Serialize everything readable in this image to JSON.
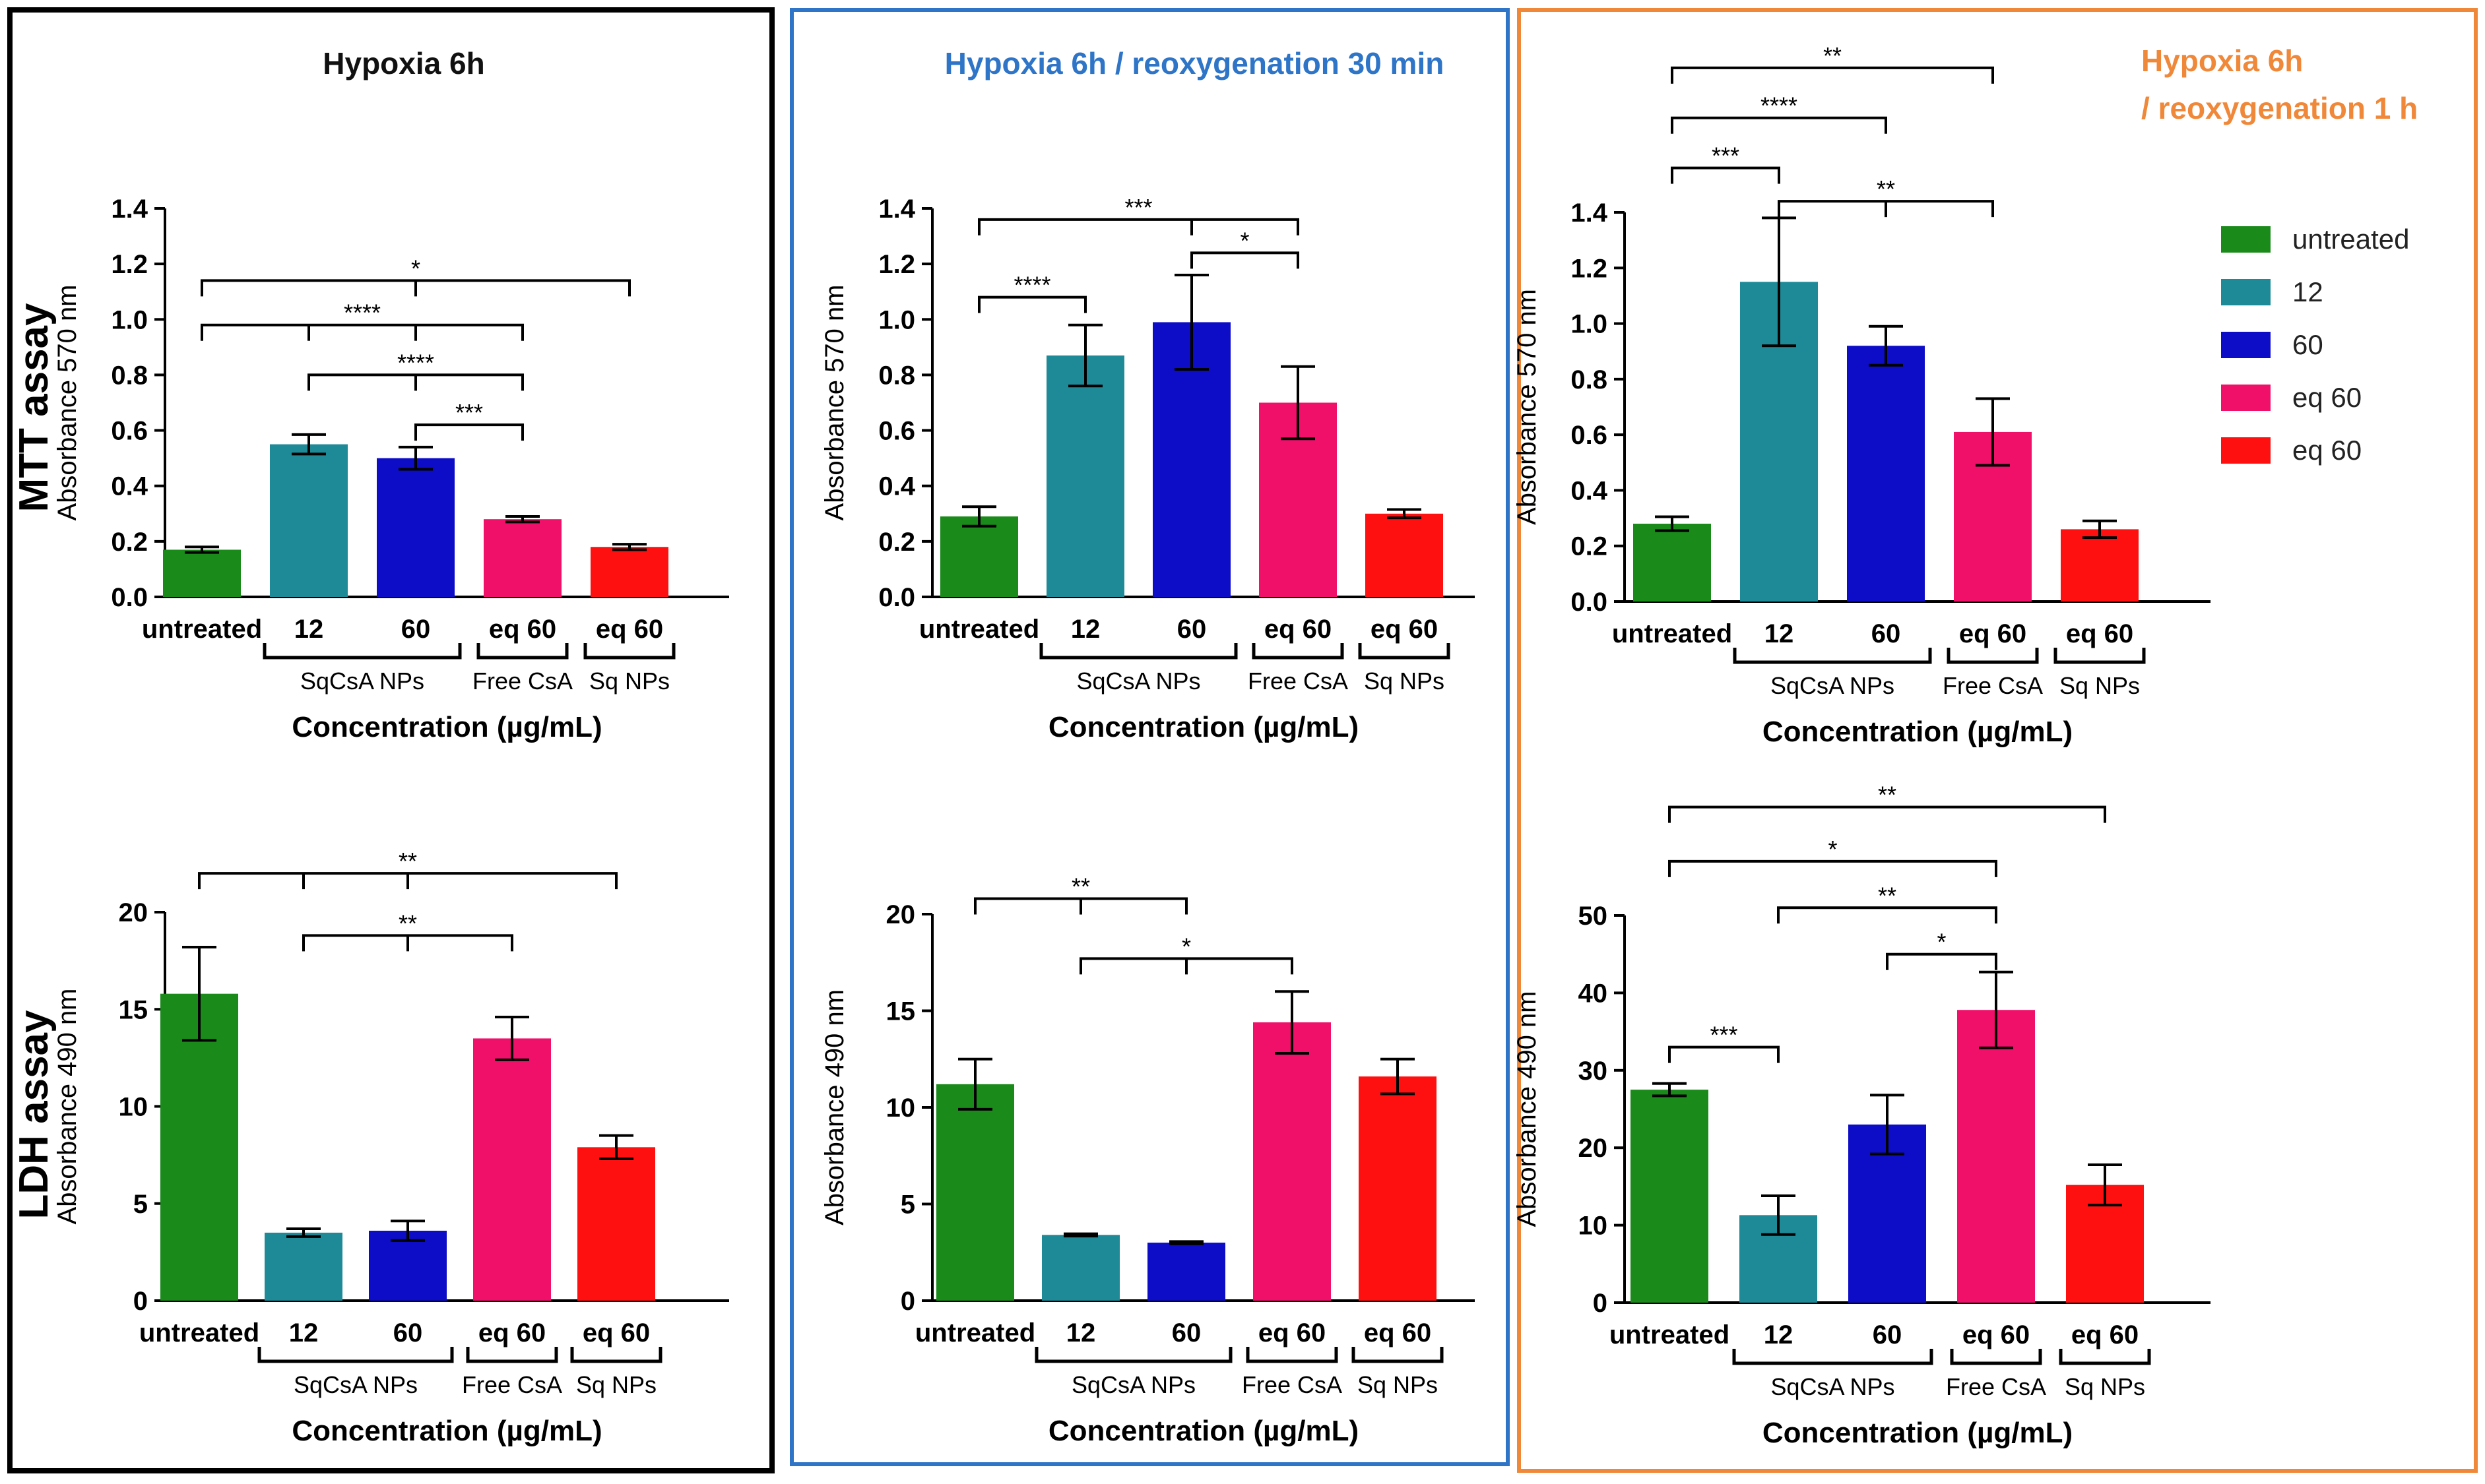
{
  "row_labels": [
    "MTT assay",
    "LDH assay"
  ],
  "legend": {
    "items": [
      {
        "label": "untreated",
        "color": "#1a8a1a"
      },
      {
        "label": "12",
        "color": "#1e8a98"
      },
      {
        "label": "60",
        "color": "#0d0dc8"
      },
      {
        "label": "eq 60",
        "color": "#f0106a"
      },
      {
        "label": "eq 60",
        "color": "#ff1010"
      }
    ]
  },
  "panels": [
    {
      "title": "Hypoxia 6h",
      "title_color": "#111111",
      "frame_color": "#000000"
    },
    {
      "title": "Hypoxia 6h / reoxygenation 30 min",
      "title_color": "#2e75c8",
      "frame_color": "#2e75c8"
    },
    {
      "title": "Hypoxia 6h / reoxygenation 1 h",
      "title_color": "#f0883a",
      "frame_color": "#f0883a"
    }
  ],
  "chart_data": [
    {
      "type": "bar",
      "panel": "Hypoxia 6h",
      "assay": "MTT assay",
      "categories": [
        "untreated",
        "12",
        "60",
        "eq 60",
        "eq 60"
      ],
      "values": [
        0.17,
        0.55,
        0.5,
        0.28,
        0.18
      ],
      "errors": [
        0.01,
        0.035,
        0.04,
        0.01,
        0.01
      ],
      "ylabel": "Absorbance 570 nm",
      "xlabel": "Concentration (µg/mL)",
      "ylim": [
        0,
        1.4
      ],
      "yticks": [
        "0.0",
        "0.2",
        "0.4",
        "0.6",
        "0.8",
        "1.0",
        "1.2",
        "1.4"
      ],
      "groups": [
        {
          "label": "SqCsA NPs",
          "from": 1,
          "to": 2
        },
        {
          "label": "Free CsA",
          "from": 3,
          "to": 3
        },
        {
          "label": "Sq NPs",
          "from": 4,
          "to": 4
        }
      ],
      "significance": [
        {
          "from": 0,
          "to": 4,
          "label": "*",
          "y": 1.14,
          "mids": [
            2
          ]
        },
        {
          "from": 0,
          "to": 3,
          "label": "****",
          "y": 0.98,
          "mids": [
            1,
            2
          ]
        },
        {
          "from": 1,
          "to": 3,
          "label": "****",
          "y": 0.8,
          "mids": [
            2
          ]
        },
        {
          "from": 2,
          "to": 3,
          "label": "***",
          "y": 0.62,
          "mids": []
        }
      ]
    },
    {
      "type": "bar",
      "panel": "Hypoxia 6h / reoxygenation 30 min",
      "assay": "MTT assay",
      "categories": [
        "untreated",
        "12",
        "60",
        "eq 60",
        "eq 60"
      ],
      "values": [
        0.29,
        0.87,
        0.99,
        0.7,
        0.3
      ],
      "errors": [
        0.035,
        0.11,
        0.17,
        0.13,
        0.015
      ],
      "ylabel": "Absorbance 570 nm",
      "xlabel": "Concentration (µg/mL)",
      "ylim": [
        0,
        1.4
      ],
      "yticks": [
        "0.0",
        "0.2",
        "0.4",
        "0.6",
        "0.8",
        "1.0",
        "1.2",
        "1.4"
      ],
      "groups": [
        {
          "label": "SqCsA NPs",
          "from": 1,
          "to": 2
        },
        {
          "label": "Free CsA",
          "from": 3,
          "to": 3
        },
        {
          "label": "Sq NPs",
          "from": 4,
          "to": 4
        }
      ],
      "significance": [
        {
          "from": 0,
          "to": 3,
          "label": "***",
          "y": 1.36,
          "mids": [
            2
          ]
        },
        {
          "from": 2,
          "to": 3,
          "label": "*",
          "y": 1.24,
          "mids": []
        },
        {
          "from": 0,
          "to": 1,
          "label": "****",
          "y": 1.08,
          "mids": []
        }
      ]
    },
    {
      "type": "bar",
      "panel": "Hypoxia 6h / reoxygenation 1 h",
      "assay": "MTT assay",
      "categories": [
        "untreated",
        "12",
        "60",
        "eq 60",
        "eq 60"
      ],
      "values": [
        0.28,
        1.15,
        0.92,
        0.61,
        0.26
      ],
      "errors": [
        0.025,
        0.23,
        0.07,
        0.12,
        0.03
      ],
      "ylabel": "Absorbance 570 nm",
      "xlabel": "Concentration (µg/mL)",
      "ylim": [
        0,
        1.4
      ],
      "yticks": [
        "0.0",
        "0.2",
        "0.4",
        "0.6",
        "0.8",
        "1.0",
        "1.2",
        "1.4"
      ],
      "groups": [
        {
          "label": "SqCsA NPs",
          "from": 1,
          "to": 2
        },
        {
          "label": "Free CsA",
          "from": 3,
          "to": 3
        },
        {
          "label": "Sq NPs",
          "from": 4,
          "to": 4
        }
      ],
      "significance": [
        {
          "from": 0,
          "to": 3,
          "label": "**",
          "y": 1.92,
          "mids": []
        },
        {
          "from": 0,
          "to": 2,
          "label": "****",
          "y": 1.74,
          "mids": []
        },
        {
          "from": 0,
          "to": 1,
          "label": "***",
          "y": 1.56,
          "mids": []
        },
        {
          "from": 1,
          "to": 3,
          "label": "**",
          "y": 1.44,
          "mids": [
            2
          ]
        }
      ]
    },
    {
      "type": "bar",
      "panel": "Hypoxia 6h",
      "assay": "LDH assay",
      "categories": [
        "untreated",
        "12",
        "60",
        "eq 60",
        "eq 60"
      ],
      "values": [
        15.8,
        3.5,
        3.6,
        13.5,
        7.9
      ],
      "errors": [
        2.4,
        0.2,
        0.5,
        1.1,
        0.6
      ],
      "ylabel": "Absorbance 490 nm",
      "xlabel": "Concentration (µg/mL)",
      "ylim": [
        0,
        20
      ],
      "yticks": [
        "0",
        "5",
        "10",
        "15",
        "20"
      ],
      "groups": [
        {
          "label": "SqCsA NPs",
          "from": 1,
          "to": 2
        },
        {
          "label": "Free CsA",
          "from": 3,
          "to": 3
        },
        {
          "label": "Sq NPs",
          "from": 4,
          "to": 4
        }
      ],
      "significance": [
        {
          "from": 0,
          "to": 4,
          "label": "**",
          "y": 22.0,
          "mids": [
            1,
            2
          ]
        },
        {
          "from": 1,
          "to": 3,
          "label": "**",
          "y": 18.8,
          "mids": [
            2
          ]
        }
      ]
    },
    {
      "type": "bar",
      "panel": "Hypoxia 6h / reoxygenation 30 min",
      "assay": "LDH assay",
      "categories": [
        "untreated",
        "12",
        "60",
        "eq 60",
        "eq 60"
      ],
      "values": [
        11.2,
        3.4,
        3.0,
        14.4,
        11.6
      ],
      "errors": [
        1.3,
        0.06,
        0.06,
        1.6,
        0.9
      ],
      "ylabel": "Absorbance 490 nm",
      "xlabel": "Concentration (µg/mL)",
      "ylim": [
        0,
        20
      ],
      "yticks": [
        "0",
        "5",
        "10",
        "15",
        "20"
      ],
      "groups": [
        {
          "label": "SqCsA NPs",
          "from": 1,
          "to": 2
        },
        {
          "label": "Free CsA",
          "from": 3,
          "to": 3
        },
        {
          "label": "Sq NPs",
          "from": 4,
          "to": 4
        }
      ],
      "significance": [
        {
          "from": 0,
          "to": 2,
          "label": "**",
          "y": 20.8,
          "mids": [
            1
          ]
        },
        {
          "from": 1,
          "to": 3,
          "label": "*",
          "y": 17.7,
          "mids": [
            2
          ]
        }
      ]
    },
    {
      "type": "bar",
      "panel": "Hypoxia 6h / reoxygenation 1 h",
      "assay": "LDH assay",
      "categories": [
        "untreated",
        "12",
        "60",
        "eq 60",
        "eq 60"
      ],
      "values": [
        27.5,
        11.3,
        23.0,
        37.8,
        15.2
      ],
      "errors": [
        0.8,
        2.5,
        3.8,
        4.9,
        2.6
      ],
      "ylabel": "Absorbance 490 nm",
      "xlabel": "Concentration (µg/mL)",
      "ylim": [
        0,
        50
      ],
      "yticks": [
        "0",
        "10",
        "20",
        "30",
        "40",
        "50"
      ],
      "groups": [
        {
          "label": "SqCsA NPs",
          "from": 1,
          "to": 2
        },
        {
          "label": "Free CsA",
          "from": 3,
          "to": 3
        },
        {
          "label": "Sq NPs",
          "from": 4,
          "to": 4
        }
      ],
      "significance": [
        {
          "from": 0,
          "to": 4,
          "label": "**",
          "y": 64.0,
          "mids": []
        },
        {
          "from": 0,
          "to": 3,
          "label": "*",
          "y": 57.0,
          "mids": []
        },
        {
          "from": 1,
          "to": 3,
          "label": "**",
          "y": 51.0,
          "mids": []
        },
        {
          "from": 2,
          "to": 3,
          "label": "*",
          "y": 45.0,
          "mids": []
        },
        {
          "from": 0,
          "to": 1,
          "label": "***",
          "y": 33.0,
          "mids": []
        }
      ]
    }
  ]
}
